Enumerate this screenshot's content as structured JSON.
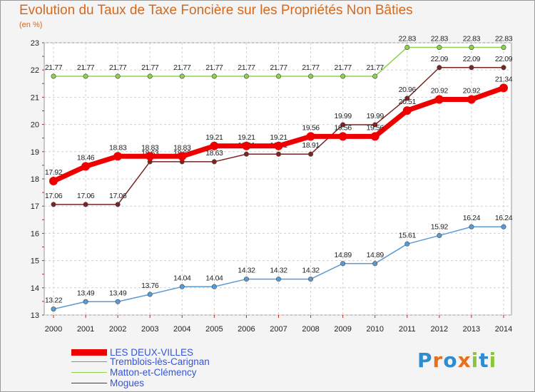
{
  "chart_data": {
    "type": "line",
    "title": "Evolution du Taux de Taxe Foncière sur les Propriétés Non Bâties",
    "ylabel": "(en %)",
    "xlabel": "",
    "ylim": [
      13,
      23
    ],
    "yticks": [
      13,
      14,
      15,
      16,
      17,
      18,
      19,
      20,
      21,
      22,
      23
    ],
    "x": [
      "2000",
      "2001",
      "2002",
      "2003",
      "2004",
      "2005",
      "2006",
      "2007",
      "2008",
      "2009",
      "2010",
      "2011",
      "2012",
      "2013",
      "2014"
    ],
    "grid": true,
    "series": [
      {
        "name": "Mogues",
        "color": "#7a2424",
        "values": [
          17.06,
          17.06,
          17.06,
          18.63,
          18.63,
          18.63,
          18.91,
          18.91,
          18.91,
          19.99,
          19.99,
          20.96,
          22.09,
          22.09,
          22.09
        ]
      },
      {
        "name": "Matton-et-Clémency",
        "color": "#8fd14f",
        "values": [
          21.77,
          21.77,
          21.77,
          21.77,
          21.77,
          21.77,
          21.77,
          21.77,
          21.77,
          21.77,
          21.77,
          22.83,
          22.83,
          22.83,
          22.83
        ]
      },
      {
        "name": "Tremblois-lès-Carignan",
        "color": "#5b9bd5",
        "values": [
          13.22,
          13.49,
          13.49,
          13.76,
          14.04,
          14.04,
          14.32,
          14.32,
          14.32,
          14.89,
          14.89,
          15.61,
          15.92,
          16.24,
          16.24
        ]
      },
      {
        "name": "LES DEUX-VILLES",
        "color": "#ee0000",
        "values": [
          17.92,
          18.46,
          18.83,
          18.83,
          18.83,
          19.21,
          19.21,
          19.21,
          19.56,
          19.56,
          19.56,
          20.51,
          20.92,
          20.92,
          21.34
        ]
      }
    ],
    "legend": [
      "LES DEUX-VILLES",
      "Tremblois-lès-Carignan",
      "Matton-et-Clémency",
      "Mogues"
    ]
  },
  "brand": {
    "text": "Proxiti",
    "letters": [
      "P",
      "r",
      "o",
      "x",
      "i",
      "t",
      "i"
    ],
    "colors": [
      "#2e8ccf",
      "#e8701a",
      "#2e8ccf",
      "#e8701a",
      "#8bc53f",
      "#2e8ccf",
      "#8bc53f"
    ]
  }
}
